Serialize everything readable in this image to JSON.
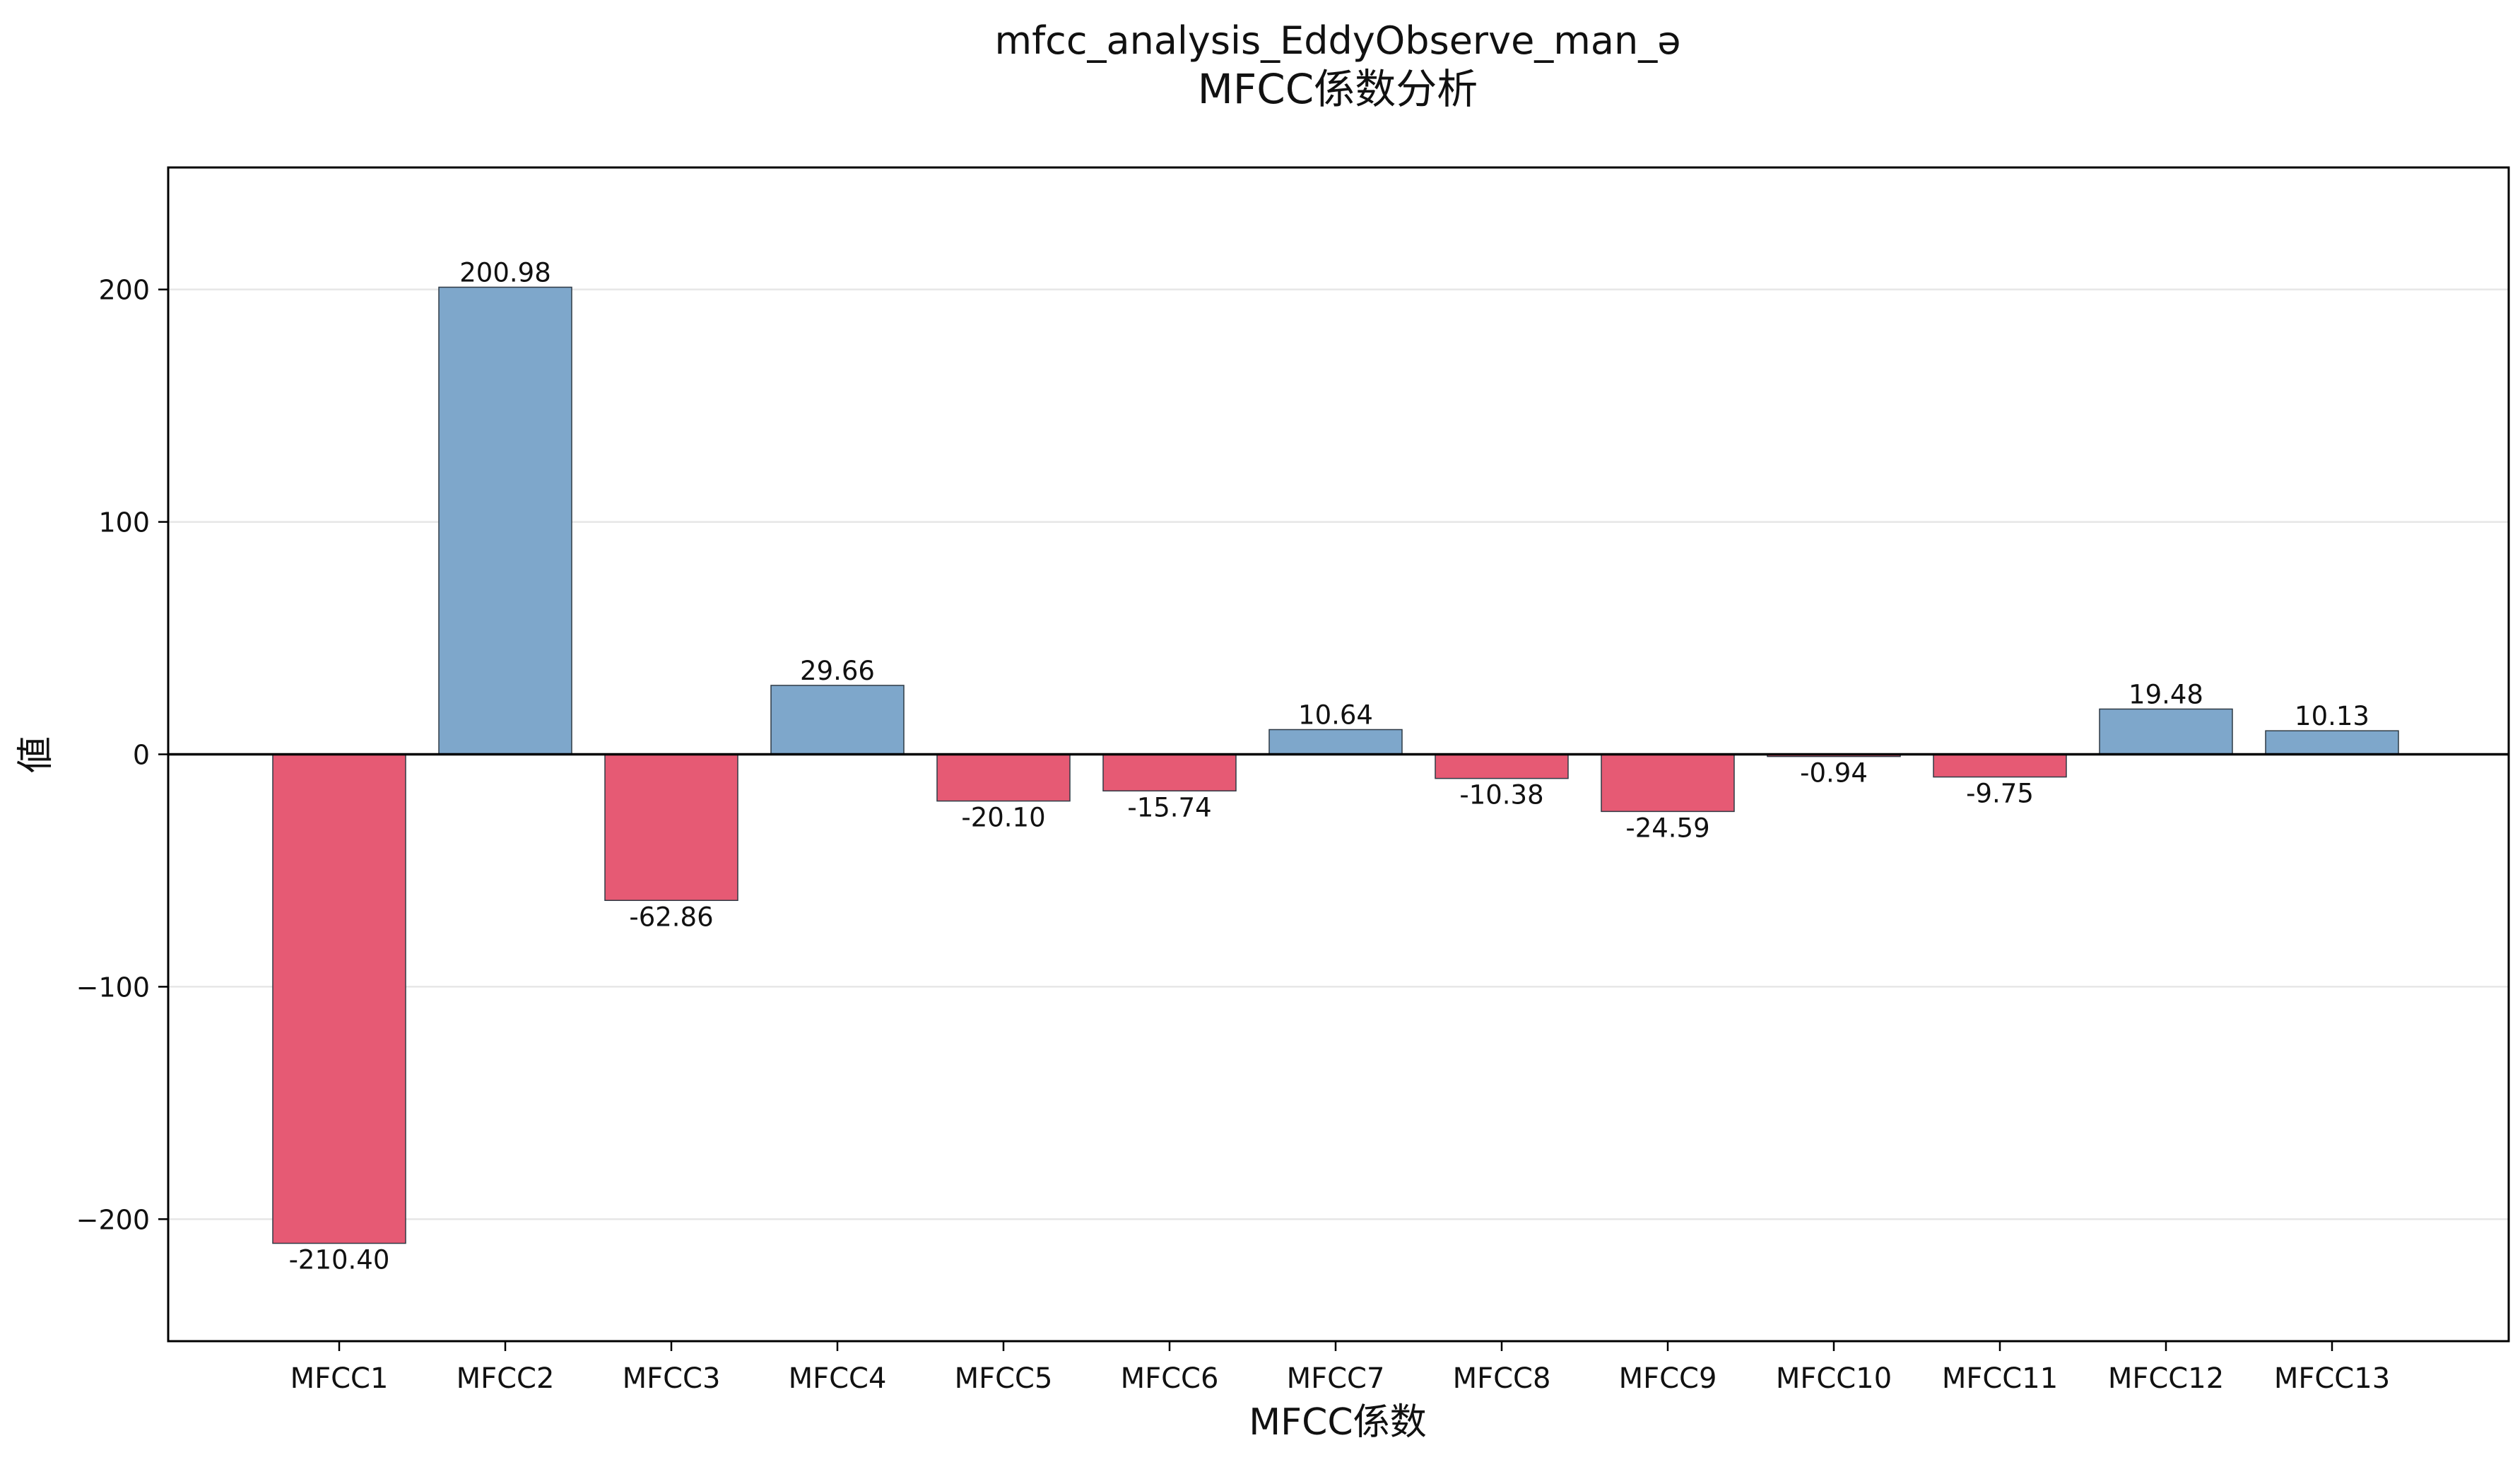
{
  "chart_data": {
    "type": "bar",
    "title": "mfcc_analysis_EddyObserve_man_ə",
    "subtitle": "MFCC係数分析",
    "xlabel": "MFCC係数",
    "ylabel": "値",
    "categories": [
      "MFCC1",
      "MFCC2",
      "MFCC3",
      "MFCC4",
      "MFCC5",
      "MFCC6",
      "MFCC7",
      "MFCC8",
      "MFCC9",
      "MFCC10",
      "MFCC11",
      "MFCC12",
      "MFCC13"
    ],
    "values": [
      -210.4,
      200.98,
      -62.86,
      29.66,
      -20.1,
      -15.74,
      10.64,
      -10.38,
      -24.59,
      -0.94,
      -9.75,
      19.48,
      10.13
    ],
    "value_labels": [
      "-210.40",
      "200.98",
      "-62.86",
      "29.66",
      "-20.10",
      "-15.74",
      "10.64",
      "-10.38",
      "-24.59",
      "-0.94",
      "-9.75",
      "19.48",
      "10.13"
    ],
    "ylim": [
      -252.5,
      252.5
    ],
    "yticks": [
      200,
      100,
      0,
      -100,
      -200
    ],
    "ytick_labels": [
      "200",
      "100",
      "0",
      "−100",
      "−200"
    ],
    "grid": "y",
    "legend": "none",
    "colors": {
      "positive": "#7ea7cb",
      "negative": "#e65a74",
      "bar_edge": "#2f3a45",
      "zero_line": "#000000",
      "grid": "#e6e6e6",
      "axes": "#000000"
    }
  }
}
